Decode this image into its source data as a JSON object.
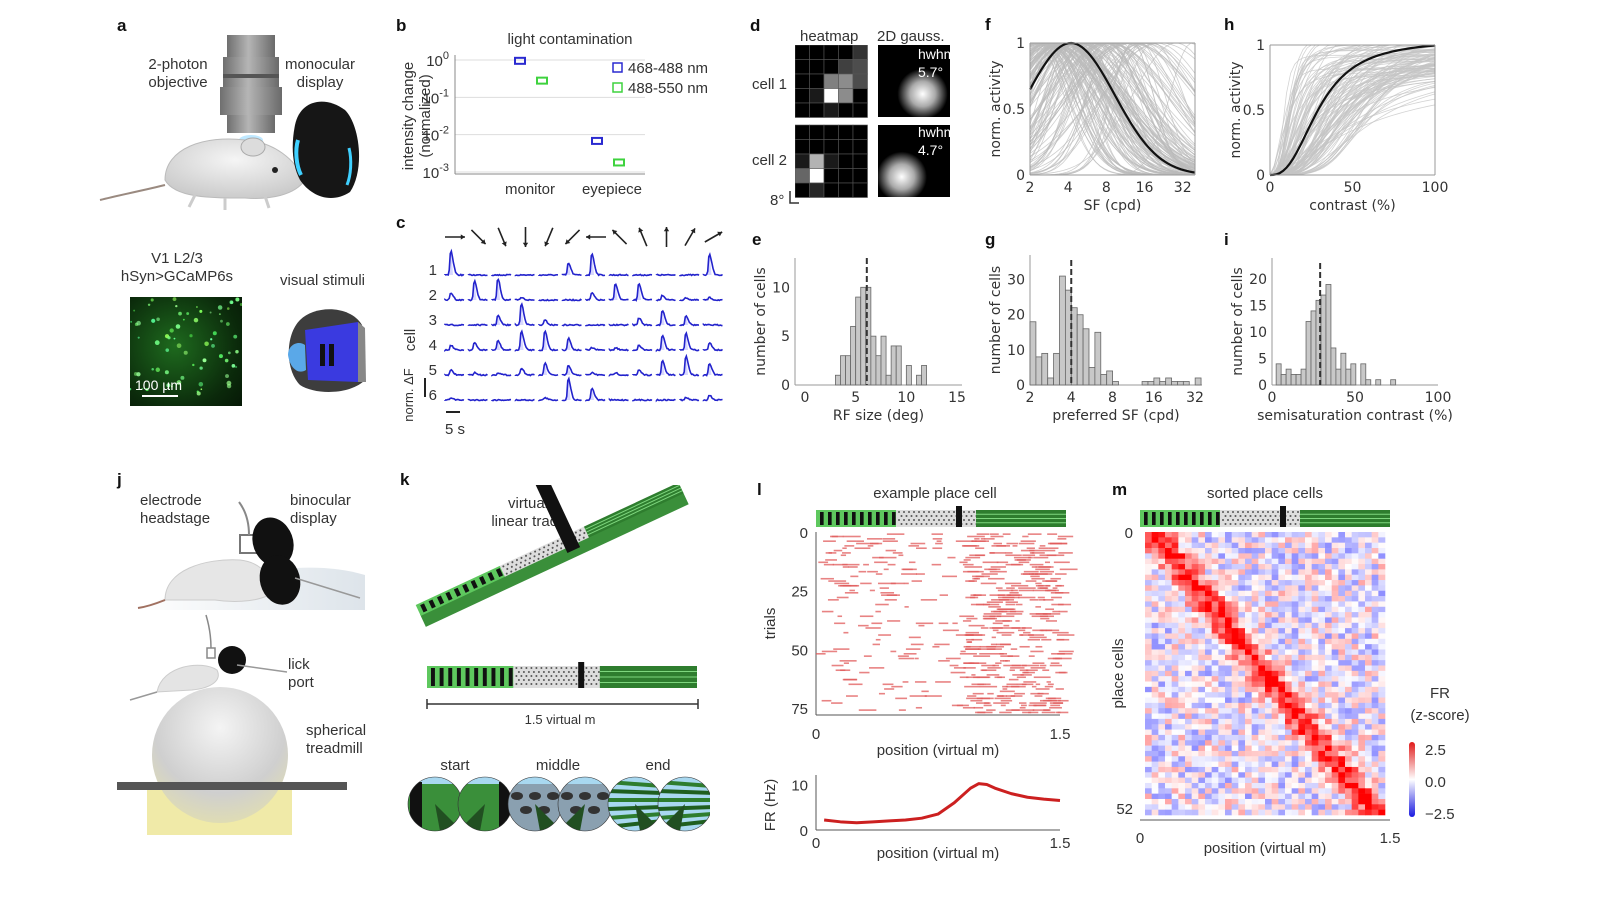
{
  "panels": {
    "a": {
      "label": "a",
      "objective_label": [
        "2-photon",
        "objective"
      ],
      "display_label": [
        "monocular",
        "display"
      ],
      "imaging_label": [
        "V1 L2/3",
        "hSyn>GCaMP6s"
      ],
      "scale_bar": "100 µm",
      "stimuli_label": "visual stimuli"
    },
    "b": {
      "label": "b"
    },
    "c": {
      "label": "c",
      "ylabel": "cell",
      "scale_y_label": "norm. ΔF",
      "scale_x_label": "5 s",
      "cells": [
        "1",
        "2",
        "3",
        "4",
        "5",
        "6"
      ],
      "directions_deg": [
        0,
        45,
        67.5,
        90,
        112.5,
        135,
        180,
        225,
        247.5,
        270,
        300,
        330
      ]
    },
    "d": {
      "label": "d",
      "col_heatmap": "heatmap",
      "col_gauss": "2D gauss.",
      "rows": [
        {
          "name": "cell 1",
          "hwhm_label": "hwhm",
          "hwhm_value": "5.7°"
        },
        {
          "name": "cell 2",
          "hwhm_label": "hwhm",
          "hwhm_value": "4.7°"
        }
      ],
      "scale": "8°"
    },
    "j": {
      "label": "j",
      "electrode_label": [
        "electrode",
        "headstage"
      ],
      "display_label": [
        "binocular",
        "display"
      ],
      "lick_label": [
        "lick",
        "port"
      ],
      "treadmill_label": [
        "spherical",
        "treadmill"
      ]
    },
    "k": {
      "label": "k",
      "track_label": [
        "virtual",
        "linear track"
      ],
      "length_label": "1.5 virtual m",
      "views": [
        "start",
        "middle",
        "end"
      ]
    }
  },
  "chart_data": [
    {
      "id": "b",
      "type": "scatter",
      "title": "light contamination",
      "xlabel": "",
      "ylabel": "intensity change (normalized)",
      "categories": [
        "monitor",
        "eyepiece"
      ],
      "yscale": "log",
      "ylim": [
        0.001,
        1
      ],
      "yticks": [
        "10^0",
        "10^-1",
        "10^-2",
        "10^-3"
      ],
      "legend_position": "right",
      "series": [
        {
          "name": "468-488 nm",
          "color": "#2a2ad0",
          "values": [
            0.95,
            0.0068
          ]
        },
        {
          "name": "488-550 nm",
          "color": "#3ed23e",
          "values": [
            0.28,
            0.0018
          ]
        }
      ]
    },
    {
      "id": "e",
      "type": "bar",
      "title": "",
      "xlabel": "RF size (deg)",
      "ylabel": "number of cells",
      "xlim": [
        0,
        15
      ],
      "ylim": [
        0,
        13
      ],
      "xticks": [
        "0",
        "5",
        "10",
        "15"
      ],
      "yticks": [
        "0",
        "5",
        "10"
      ],
      "bin_start": 3.0,
      "bin_width": 0.5,
      "values": [
        1,
        3,
        3,
        6,
        9,
        10,
        10,
        5,
        3,
        5,
        1,
        4,
        4,
        0,
        2,
        0,
        1,
        2
      ],
      "median_line": 6.1
    },
    {
      "id": "f",
      "type": "line",
      "title": "",
      "xlabel": "SF (cpd)",
      "ylabel": "norm. activity",
      "xscale": "log2",
      "xlim": [
        2,
        40
      ],
      "ylim": [
        0,
        1
      ],
      "xticks": [
        "2",
        "4",
        "8",
        "16",
        "32"
      ],
      "yticks": [
        "0",
        "0.5",
        "1"
      ],
      "mean_curve": {
        "type": "log-gaussian",
        "peak_sf": 4.2,
        "sigma_octaves": 1.15,
        "color": "#111111"
      },
      "individual_curves": {
        "count": 150,
        "color": "#bbbbbb"
      }
    },
    {
      "id": "g",
      "type": "bar",
      "title": "",
      "xlabel": "preferred SF (cpd)",
      "ylabel": "number of cells",
      "xscale": "log2",
      "xlim": [
        2,
        36
      ],
      "ylim": [
        0,
        37
      ],
      "xticks": [
        "2",
        "4",
        "8",
        "16",
        "32"
      ],
      "yticks": [
        "0",
        "10",
        "20",
        "30"
      ],
      "bin_start_log2": 1.0,
      "bin_width_log2": 0.143,
      "values": [
        18,
        8,
        9,
        2,
        9,
        31,
        27,
        22,
        20,
        16,
        5,
        15,
        3,
        4,
        1,
        0,
        0,
        0,
        0,
        1,
        1,
        2,
        1,
        2,
        1,
        1,
        1,
        0,
        2
      ],
      "median_line": 4.0
    },
    {
      "id": "h",
      "type": "line",
      "title": "",
      "xlabel": "contrast (%)",
      "ylabel": "norm. activity",
      "xlim": [
        0,
        100
      ],
      "ylim": [
        0,
        1
      ],
      "xticks": [
        "0",
        "50",
        "100"
      ],
      "yticks": [
        "0",
        "0.5",
        "1"
      ],
      "mean_curve": {
        "type": "naka-rushton",
        "c50": 30,
        "n": 2.6,
        "color": "#111111"
      },
      "individual_curves": {
        "count": 120,
        "color": "#c4c4c4"
      }
    },
    {
      "id": "i",
      "type": "bar",
      "title": "",
      "xlabel": "semisaturation contrast (%)",
      "ylabel": "number of cells",
      "xlim": [
        0,
        100
      ],
      "ylim": [
        0,
        24
      ],
      "xticks": [
        "0",
        "50",
        "100"
      ],
      "yticks": [
        "0",
        "5",
        "10",
        "15",
        "20"
      ],
      "bin_start": 2.5,
      "bin_width": 3.0,
      "values": [
        4,
        2,
        3,
        2,
        2,
        3,
        12,
        14,
        16,
        17,
        19,
        7,
        3,
        6,
        3,
        4,
        0,
        4,
        1,
        0,
        1,
        0,
        0,
        1
      ],
      "median_line": 29
    },
    {
      "id": "l-raster",
      "type": "scatter",
      "title": "example place cell",
      "xlabel": "position (virtual m)",
      "ylabel": "trials",
      "xlim": [
        0,
        1.5
      ],
      "ylim": [
        0,
        78
      ],
      "xticks": [
        "0",
        "1.5"
      ],
      "yticks": [
        "0",
        "25",
        "50",
        "75"
      ],
      "color": "#e05a5a"
    },
    {
      "id": "l-rate",
      "type": "line",
      "title": "",
      "xlabel": "position (virtual m)",
      "ylabel": "FR (Hz)",
      "xlim": [
        0,
        1.5
      ],
      "ylim": [
        0,
        11
      ],
      "xticks": [
        "0",
        "1.5"
      ],
      "yticks": [
        "0",
        "10"
      ],
      "color": "#cc2020",
      "x": [
        0.05,
        0.15,
        0.25,
        0.35,
        0.45,
        0.55,
        0.65,
        0.75,
        0.85,
        0.95,
        1.0,
        1.05,
        1.1,
        1.2,
        1.3,
        1.4,
        1.5
      ],
      "y": [
        2.2,
        1.8,
        1.6,
        1.8,
        2.0,
        2.2,
        2.6,
        3.5,
        6.0,
        9.2,
        10.2,
        10.0,
        9.2,
        8.0,
        7.2,
        6.8,
        6.5
      ]
    },
    {
      "id": "m",
      "type": "heatmap",
      "title": "sorted place cells",
      "xlabel": "position (virtual m)",
      "ylabel": "place cells",
      "xlim": [
        0,
        1.5
      ],
      "ylim": [
        0,
        52
      ],
      "xticks": [
        "0",
        "1.5"
      ],
      "yticks": [
        "0",
        "52"
      ],
      "rows": 53,
      "cols": 36,
      "colorbar": {
        "title": [
          "FR",
          "(z-score)"
        ],
        "ticks": [
          "2.5",
          "0.0",
          "−2.5"
        ],
        "range": [
          -2.5,
          2.5
        ],
        "colors": [
          "#1a1ae0",
          "#ffffff",
          "#e01a1a"
        ]
      }
    }
  ]
}
